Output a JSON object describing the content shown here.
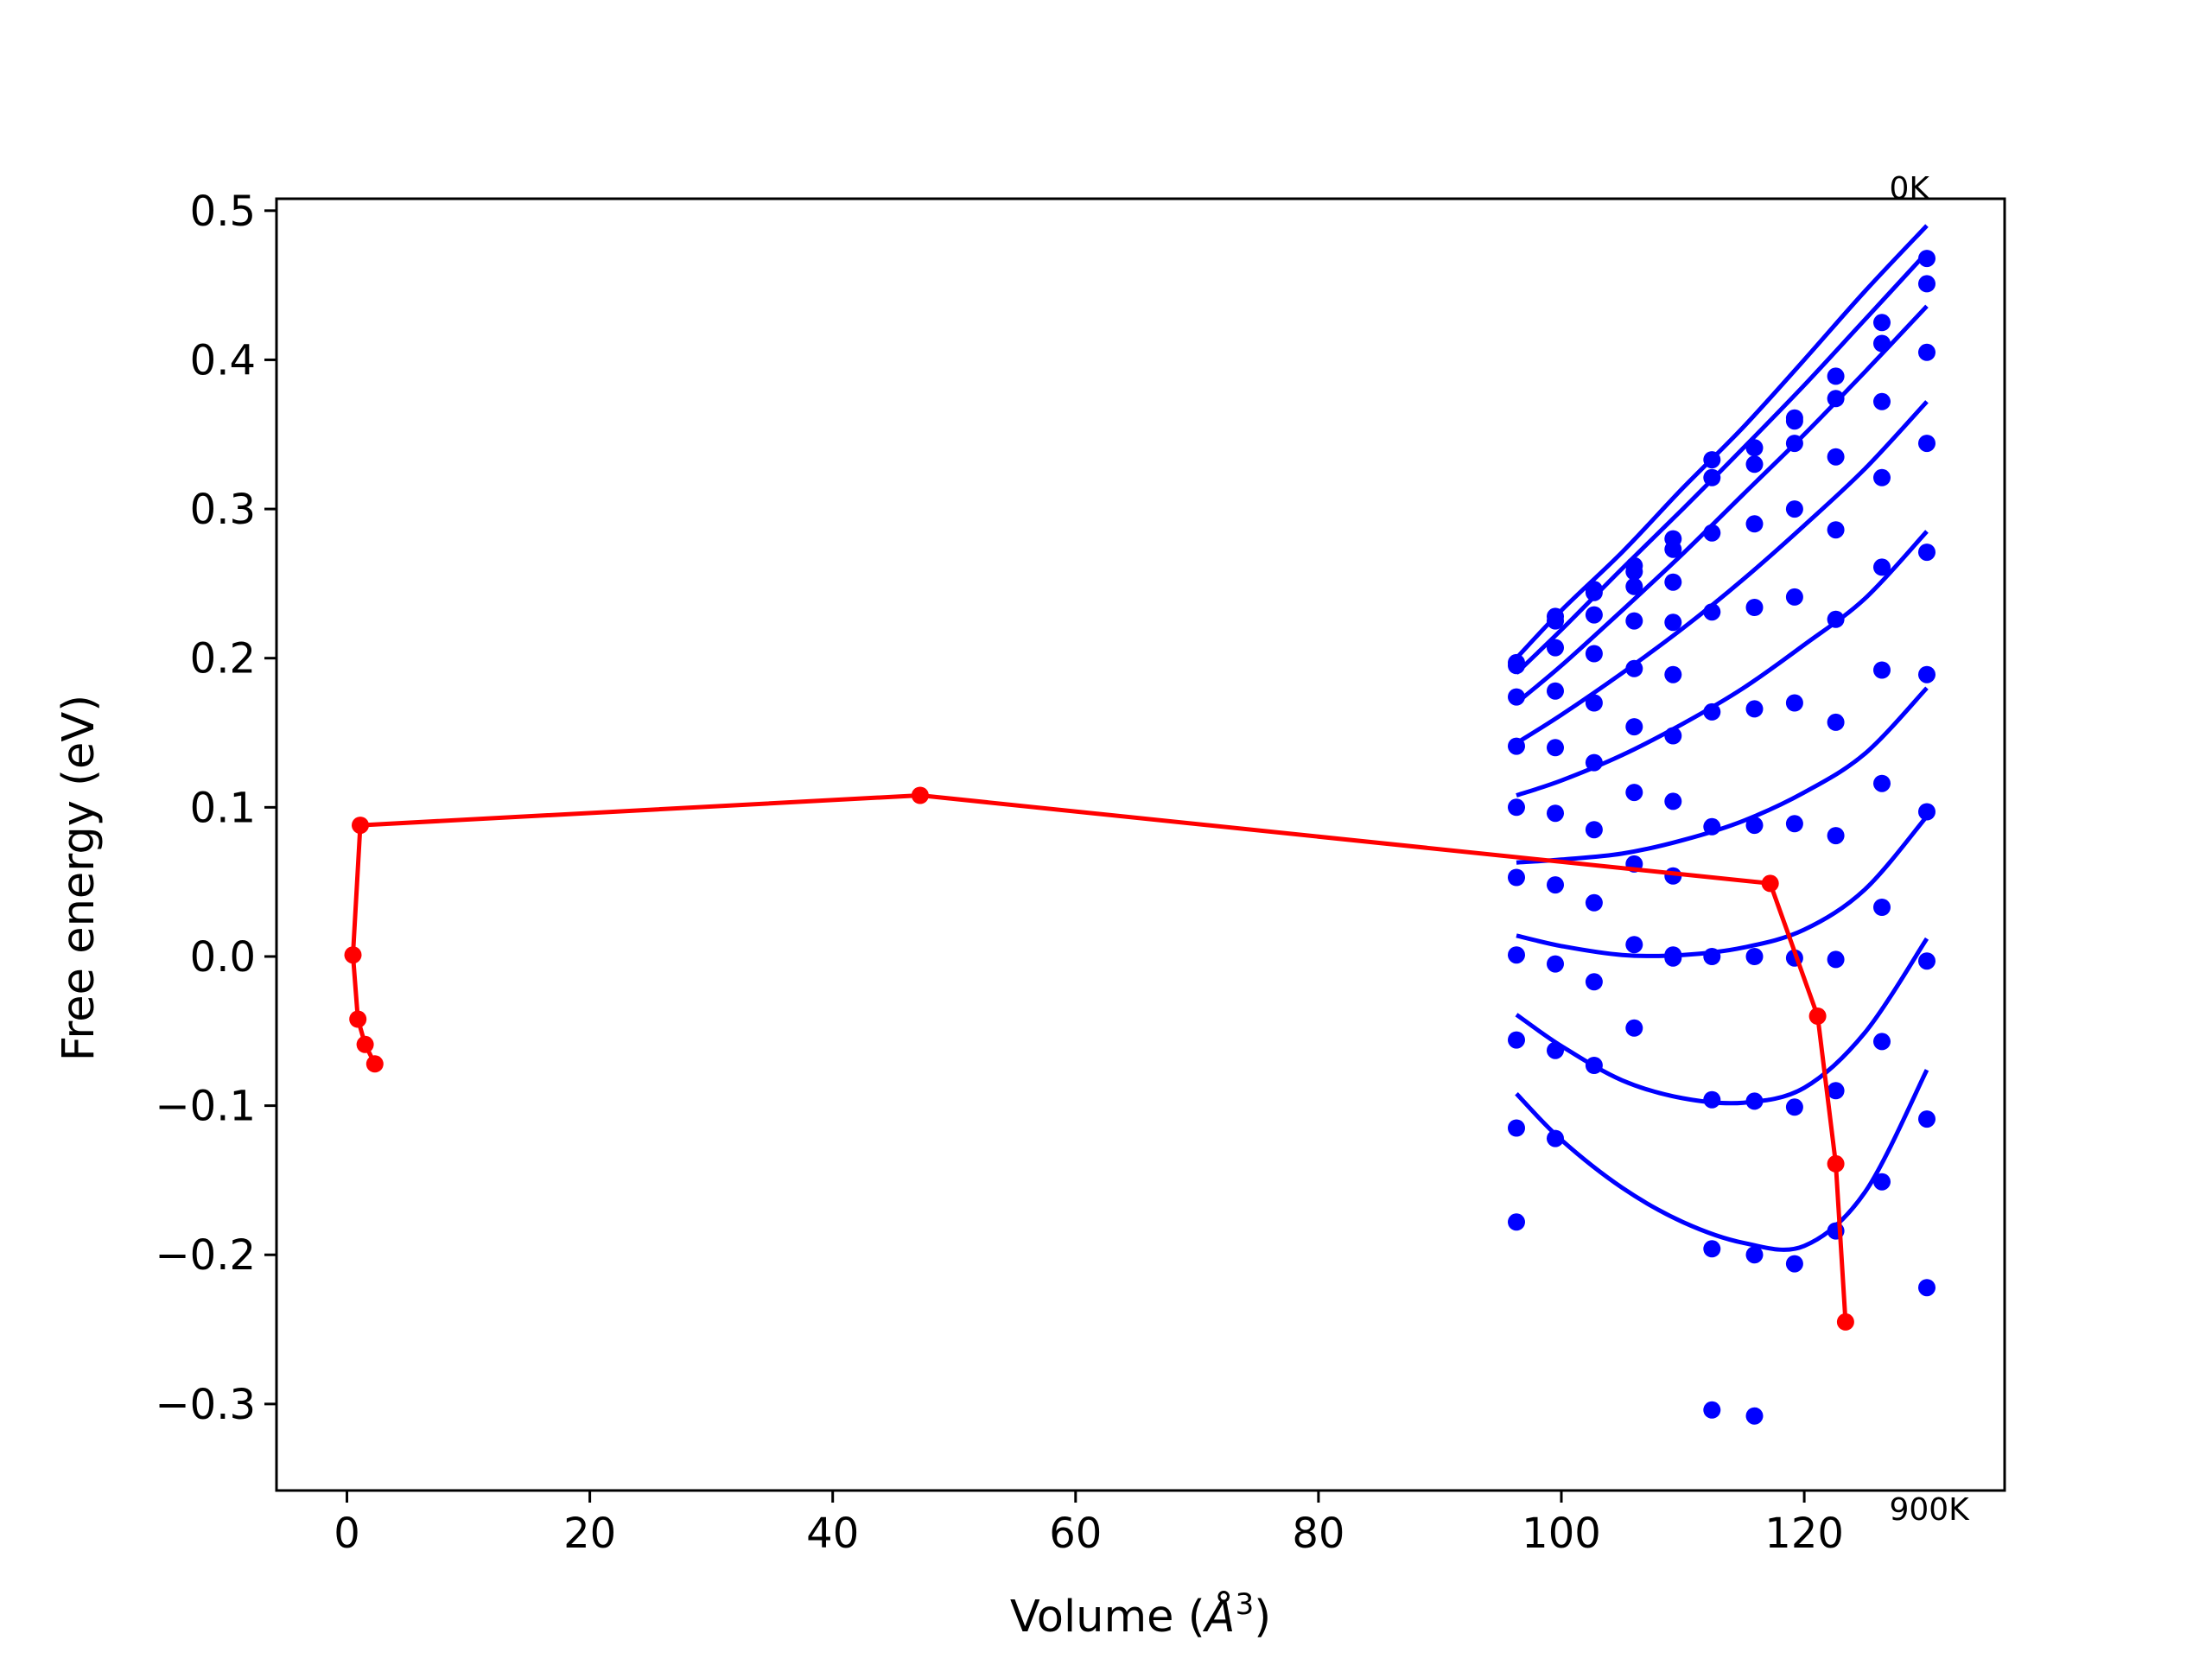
{
  "chart_data": {
    "type": "line",
    "xlabel": "Volume (Å³)",
    "xlabel_main": "Volume (",
    "xlabel_unit": "Å",
    "xlabel_sup": "3",
    "xlabel_close": ")",
    "ylabel": "Free energy (eV)",
    "xlim": [
      -5.8,
      136.5
    ],
    "ylim": [
      -0.358,
      0.508
    ],
    "xticks": [
      0,
      20,
      40,
      60,
      80,
      100,
      120
    ],
    "xtick_labels": [
      "0",
      "20",
      "40",
      "60",
      "80",
      "100",
      "120"
    ],
    "yticks": [
      -0.3,
      -0.2,
      -0.1,
      0.0,
      0.1,
      0.2,
      0.3,
      0.4,
      0.5
    ],
    "ytick_labels": [
      "−0.3",
      "−0.2",
      "−0.1",
      "0.0",
      "0.1",
      "0.2",
      "0.3",
      "0.4",
      "0.5"
    ],
    "annotations": [
      {
        "text": "0K",
        "x": 130.2,
        "y": 0.5
      },
      {
        "text": "900K",
        "x": 130.2,
        "y": -0.358
      }
    ],
    "grid": false,
    "colors": {
      "points": "#0000ff",
      "fits": "#0000ff",
      "path": "#ff0000"
    },
    "point_series": [
      {
        "x": [
          96.3,
          99.5,
          102.7,
          106.0,
          109.2,
          112.4,
          115.9,
          119.2,
          122.6,
          126.4,
          130.1
        ],
        "y": [
          0.197,
          0.228,
          0.246,
          0.262,
          0.28,
          0.333,
          0.341,
          0.361,
          0.389,
          0.425,
          0.468
        ]
      },
      {
        "x": [
          96.3,
          99.5,
          102.7,
          106.0,
          109.2,
          112.4,
          115.9,
          119.2,
          122.6,
          126.4,
          130.1
        ],
        "y": [
          0.195,
          0.225,
          0.244,
          0.258,
          0.273,
          0.321,
          0.33,
          0.359,
          0.374,
          0.411,
          0.451
        ]
      },
      {
        "x": [
          96.3,
          99.5,
          102.7,
          106.0,
          109.2,
          112.4,
          115.9,
          119.2,
          122.6,
          126.4,
          130.1
        ],
        "y": [
          0.174,
          0.207,
          0.229,
          0.248,
          0.251,
          0.284,
          0.29,
          0.344,
          0.335,
          0.372,
          0.405
        ]
      },
      {
        "x": [
          96.3,
          99.5,
          102.7,
          106.0,
          109.2,
          112.4,
          115.9,
          119.2,
          122.6,
          126.4,
          130.1
        ],
        "y": [
          0.141,
          0.178,
          0.203,
          0.225,
          0.224,
          0.231,
          0.234,
          0.3,
          0.286,
          0.321,
          0.344
        ]
      },
      {
        "x": [
          96.3,
          99.5,
          102.7,
          106.0,
          109.2,
          112.4,
          115.9,
          119.2,
          122.6,
          126.4,
          130.1
        ],
        "y": [
          0.1,
          0.14,
          0.17,
          0.193,
          0.189,
          0.164,
          0.166,
          0.241,
          0.226,
          0.261,
          0.271
        ]
      },
      {
        "x": [
          96.3,
          99.5,
          102.7,
          106.0,
          109.2,
          112.4,
          115.9,
          119.2,
          122.6,
          126.4,
          130.1
        ],
        "y": [
          0.053,
          0.096,
          0.13,
          0.154,
          0.148,
          0.087,
          0.088,
          0.17,
          0.157,
          0.192,
          0.189
        ]
      },
      {
        "x": [
          96.3,
          99.5,
          102.7,
          106.0,
          109.2,
          112.4,
          115.9,
          119.2,
          122.6,
          126.4,
          130.1
        ],
        "y": [
          0.001,
          0.048,
          0.085,
          0.11,
          0.104,
          0.0,
          0.0,
          0.089,
          0.081,
          0.116,
          0.097
        ]
      },
      {
        "x": [
          96.3,
          99.5,
          102.7,
          106.0,
          109.2,
          112.4,
          115.9,
          119.2,
          122.6,
          126.4,
          130.1
        ],
        "y": [
          -0.056,
          -0.005,
          0.036,
          0.062,
          0.054,
          -0.096,
          -0.097,
          -0.001,
          -0.002,
          0.033,
          -0.003
        ]
      },
      {
        "x": [
          96.3,
          99.5,
          102.7,
          106.0,
          109.2,
          112.4,
          115.9,
          119.2,
          122.6,
          126.4,
          130.1
        ],
        "y": [
          -0.115,
          -0.063,
          -0.017,
          0.008,
          0.001,
          -0.196,
          -0.2,
          -0.101,
          -0.09,
          -0.057,
          -0.109
        ]
      },
      {
        "x": [
          96.3,
          99.5,
          102.7,
          106.0,
          109.2,
          112.4,
          115.9,
          119.2,
          122.6,
          126.4,
          130.1
        ],
        "y": [
          -0.178,
          -0.122,
          -0.073,
          -0.048,
          -0.001,
          -0.304,
          -0.308,
          -0.206,
          -0.184,
          -0.151,
          -0.222
        ]
      }
    ],
    "fit_series": [
      {
        "x": [
          96.3,
          100,
          105,
          110,
          115,
          120,
          125,
          130.1
        ],
        "y": [
          0.2,
          0.232,
          0.271,
          0.314,
          0.355,
          0.4,
          0.446,
          0.49
        ]
      },
      {
        "x": [
          96.3,
          100,
          105,
          110,
          115,
          120,
          125,
          130.1
        ],
        "y": [
          0.19,
          0.219,
          0.26,
          0.3,
          0.341,
          0.383,
          0.427,
          0.472
        ]
      },
      {
        "x": [
          96.3,
          100,
          105,
          110,
          115,
          120,
          125,
          130.1
        ],
        "y": [
          0.17,
          0.195,
          0.232,
          0.27,
          0.31,
          0.35,
          0.392,
          0.436
        ]
      },
      {
        "x": [
          96.3,
          100,
          105,
          110,
          115,
          120,
          125,
          130.1
        ],
        "y": [
          0.143,
          0.162,
          0.19,
          0.22,
          0.253,
          0.289,
          0.327,
          0.372
        ]
      },
      {
        "x": [
          96.3,
          100,
          105,
          110,
          115,
          120,
          125,
          130.1
        ],
        "y": [
          0.108,
          0.118,
          0.135,
          0.156,
          0.18,
          0.209,
          0.24,
          0.285
        ]
      },
      {
        "x": [
          96.3,
          100,
          105,
          110,
          115,
          120,
          125,
          130.1
        ],
        "y": [
          0.063,
          0.065,
          0.069,
          0.078,
          0.091,
          0.11,
          0.136,
          0.18
        ]
      },
      {
        "x": [
          96.3,
          100,
          105,
          110,
          115,
          120,
          125,
          130.1
        ],
        "y": [
          0.014,
          0.007,
          0.001,
          0.001,
          0.006,
          0.018,
          0.045,
          0.094
        ]
      },
      {
        "x": [
          96.3,
          100,
          105,
          110,
          115,
          120,
          125,
          130.1
        ],
        "y": [
          -0.039,
          -0.06,
          -0.083,
          -0.095,
          -0.098,
          -0.088,
          -0.051,
          0.012
        ]
      },
      {
        "x": [
          96.3,
          100,
          105,
          110,
          115,
          120,
          125,
          130.1
        ],
        "y": [
          -0.092,
          -0.123,
          -0.155,
          -0.178,
          -0.192,
          -0.194,
          -0.158,
          -0.076
        ]
      }
    ],
    "path_series": {
      "x": [
        2.3,
        1.5,
        0.9,
        0.5,
        1.1,
        47.2,
        117.2,
        121.1,
        122.6,
        123.4
      ],
      "y": [
        -0.072,
        -0.059,
        -0.042,
        0.001,
        0.088,
        0.108,
        0.049,
        -0.04,
        -0.139,
        -0.245
      ]
    }
  }
}
